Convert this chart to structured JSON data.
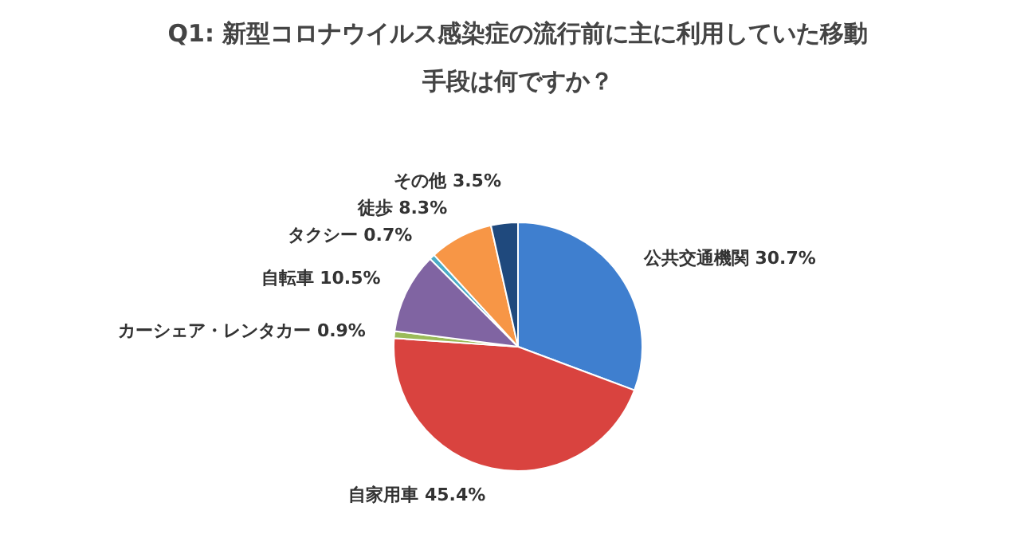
{
  "chart_data": {
    "type": "pie",
    "title": "Q1: 新型コロナウイルス感染症の流行前に主に利用していた移動手段は何ですか？",
    "categories": [
      "公共交通機関",
      "自家用車",
      "カーシェア・レンタカー",
      "自転車",
      "タクシー",
      "徒歩",
      "その他"
    ],
    "values": [
      30.7,
      45.4,
      0.9,
      10.5,
      0.7,
      8.3,
      3.5
    ],
    "value_labels": [
      "30.7%",
      "45.4%",
      "0.9%",
      "10.5%",
      "0.7%",
      "8.3%",
      "3.5%"
    ],
    "colors": [
      "#3f7fcf",
      "#d9433f",
      "#9bbb59",
      "#8064a2",
      "#4bacc6",
      "#f79646",
      "#1f497d"
    ],
    "legend": false
  }
}
